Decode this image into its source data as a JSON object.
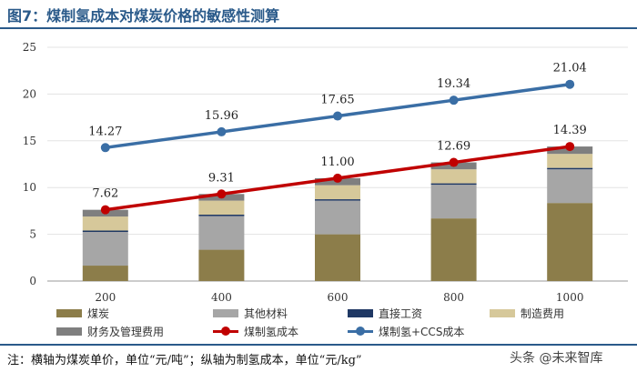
{
  "title": "图7：煤制氢成本对煤炭价格的敏感性测算",
  "footer": "注：横轴为煤炭单价，单位“元/吨”；纵轴为制氢成本，单位“元/kg”",
  "watermark": "头条 @未来智库",
  "chart_data": {
    "type": "bar",
    "stacked": true,
    "categories": [
      "200",
      "400",
      "600",
      "800",
      "1000"
    ],
    "ylim": [
      0,
      25
    ],
    "yticks": [
      0,
      5,
      10,
      15,
      20,
      25
    ],
    "ytick_labels": [
      "0",
      "5",
      "10",
      "15",
      "20",
      "25"
    ],
    "grid": true,
    "legend_position": "bottom",
    "series": [
      {
        "name": "煤炭",
        "kind": "bar",
        "color": "#8c7d4a",
        "values": [
          1.65,
          3.35,
          5.0,
          6.7,
          8.35
        ]
      },
      {
        "name": "其他材料",
        "kind": "bar",
        "color": "#a6a6a6",
        "values": [
          3.6,
          3.6,
          3.6,
          3.6,
          3.6
        ]
      },
      {
        "name": "直接工资",
        "kind": "bar",
        "color": "#1f3864",
        "values": [
          0.15,
          0.15,
          0.15,
          0.15,
          0.15
        ]
      },
      {
        "name": "制造费用",
        "kind": "bar",
        "color": "#d6c89a",
        "values": [
          1.5,
          1.5,
          1.5,
          1.5,
          1.5
        ]
      },
      {
        "name": "财务及管理费用",
        "kind": "bar",
        "color": "#7f7f7f",
        "values": [
          0.72,
          0.71,
          0.75,
          0.74,
          0.79
        ]
      },
      {
        "name": "煤制氢成本",
        "kind": "line",
        "color": "#c00000",
        "values": [
          7.62,
          9.31,
          11.0,
          12.69,
          14.39
        ],
        "labels": [
          "7.62",
          "9.31",
          "11.00",
          "12.69",
          "14.39"
        ]
      },
      {
        "name": "煤制氢+CCS成本",
        "kind": "line",
        "color": "#3a6ea5",
        "values": [
          14.27,
          15.96,
          17.65,
          19.34,
          21.04
        ],
        "labels": [
          "14.27",
          "15.96",
          "17.65",
          "19.34",
          "21.04"
        ]
      }
    ]
  }
}
